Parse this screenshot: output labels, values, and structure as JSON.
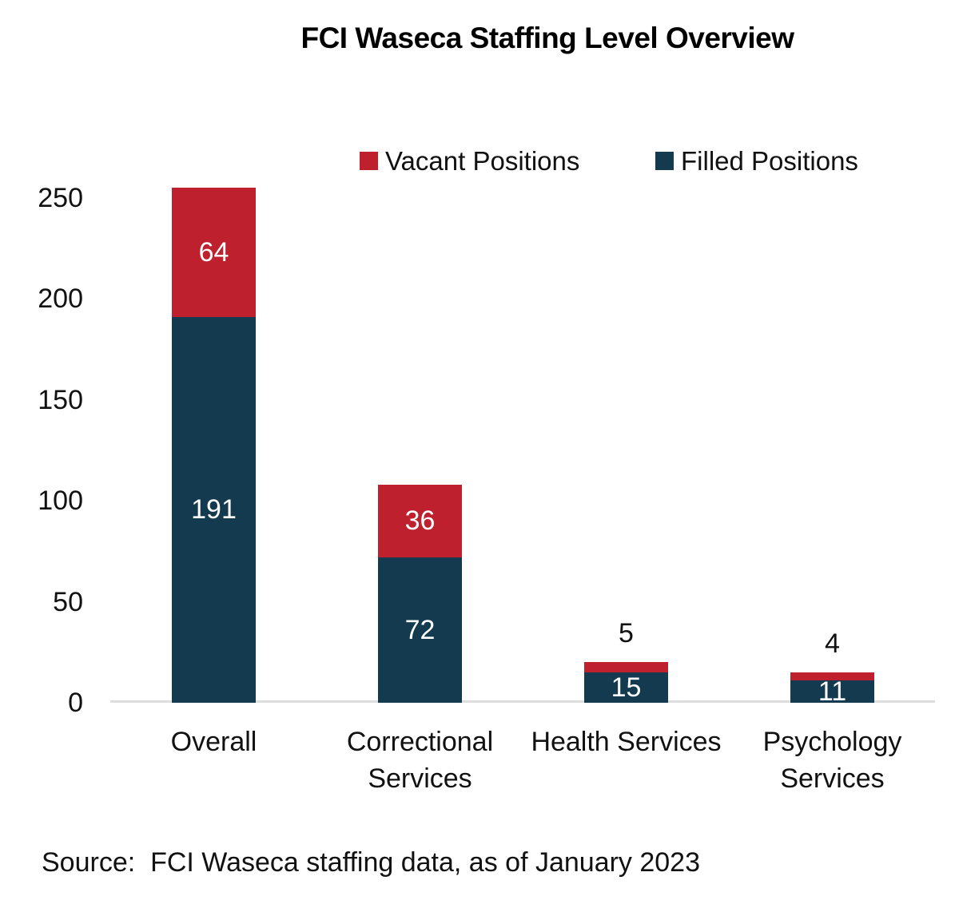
{
  "chart_data": {
    "type": "bar",
    "stacked": true,
    "title": "FCI Waseca Staffing Level Overview",
    "categories": [
      "Overall",
      "Correctional\nServices",
      "Health Services",
      "Psychology\nServices"
    ],
    "series": [
      {
        "name": "Vacant Positions",
        "color": "#BE202D",
        "values": [
          64,
          36,
          5,
          4
        ]
      },
      {
        "name": "Filled Positions",
        "color": "#143A50",
        "values": [
          191,
          72,
          15,
          11
        ]
      }
    ],
    "totals": [
      255,
      108,
      20,
      15
    ],
    "ylim": [
      0,
      250
    ],
    "yticks": [
      0,
      50,
      100,
      150,
      200,
      250
    ],
    "legend_position": "top",
    "grid": false,
    "colors": {
      "vacant": "#BE202D",
      "filled": "#143A50",
      "axis_line": "#dedede",
      "bar_label_inside": "#ffffff",
      "bar_label_outside": "#111111"
    }
  },
  "source": "Source:  FCI Waseca staffing data, as of January 2023"
}
